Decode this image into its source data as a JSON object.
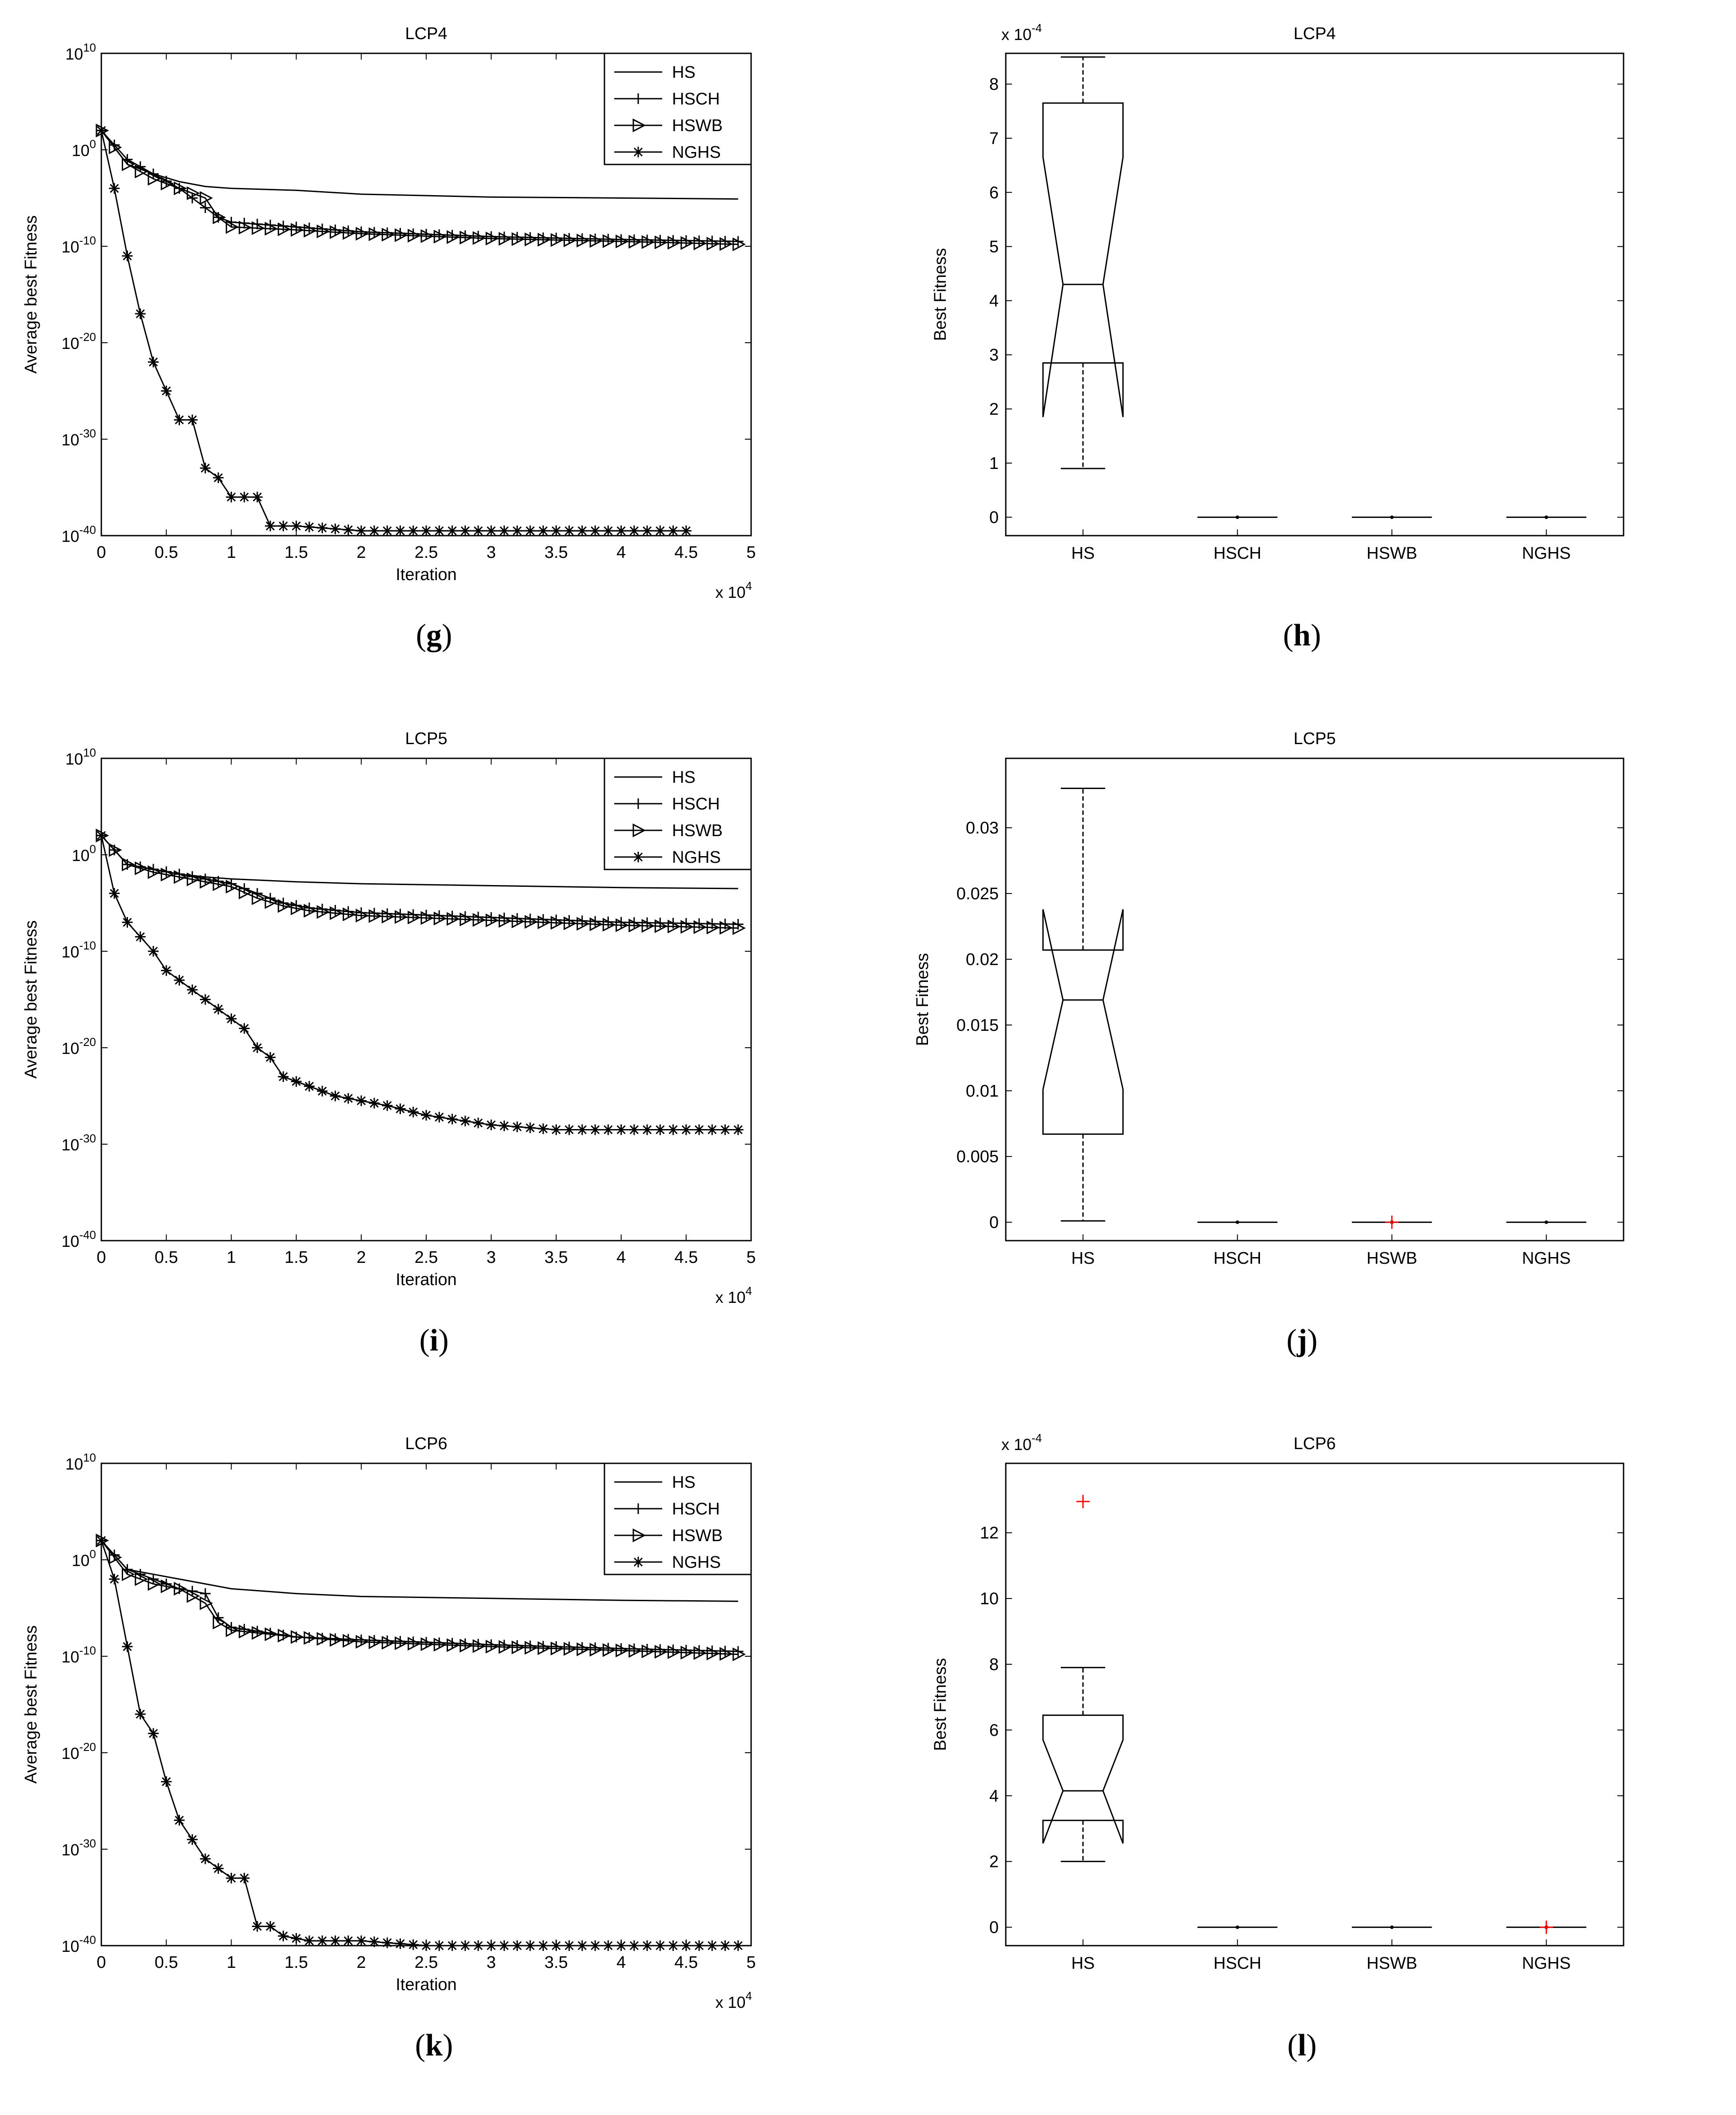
{
  "panels": [
    {
      "caption_letter": "g",
      "chart_index": 0
    },
    {
      "caption_letter": "h",
      "chart_index": 1
    },
    {
      "caption_letter": "i",
      "chart_index": 2
    },
    {
      "caption_letter": "j",
      "chart_index": 3
    },
    {
      "caption_letter": "k",
      "chart_index": 4
    },
    {
      "caption_letter": "l",
      "chart_index": 5
    }
  ],
  "chart_data": [
    {
      "type": "line",
      "title": "LCP4",
      "xlabel": "Iteration",
      "ylabel": "Average best Fitness",
      "x_multiplier_label": "x 10^4",
      "yscale": "log",
      "xlim": [
        0,
        5
      ],
      "ylim_exp": [
        -40,
        10
      ],
      "xticks": [
        "0",
        "0.5",
        "1",
        "1.5",
        "2",
        "2.5",
        "3",
        "3.5",
        "4",
        "4.5",
        "5"
      ],
      "yticks_exp": [
        10,
        0,
        -10,
        -20,
        -30,
        -40
      ],
      "legend": [
        "HS",
        "HSCH",
        "HSWB",
        "NGHS"
      ],
      "legend_position": "top-right",
      "series": [
        {
          "name": "HS",
          "marker": "none",
          "x": [
            0,
            0.2,
            0.4,
            0.6,
            0.8,
            1.0,
            1.5,
            2.0,
            3.0,
            4.0,
            4.9
          ],
          "y_exp": [
            2,
            -1.5,
            -2.5,
            -3.3,
            -3.8,
            -4.0,
            -4.2,
            -4.6,
            -4.9,
            -5.0,
            -5.1
          ]
        },
        {
          "name": "HSCH",
          "marker": "plus",
          "x": [
            0,
            0.2,
            0.4,
            0.6,
            0.8,
            0.9,
            1.0,
            1.5,
            2.0,
            3.0,
            4.0,
            4.9
          ],
          "y_exp": [
            2,
            -1.0,
            -2.5,
            -4.0,
            -6.0,
            -7.0,
            -7.5,
            -8.0,
            -8.5,
            -9.0,
            -9.3,
            -9.5
          ]
        },
        {
          "name": "HSWB",
          "marker": "triangle",
          "x": [
            0,
            0.2,
            0.4,
            0.6,
            0.8,
            0.9,
            1.0,
            1.5,
            2.0,
            3.0,
            4.0,
            4.9
          ],
          "y_exp": [
            2,
            -1.5,
            -3.0,
            -4.0,
            -5.0,
            -7.0,
            -8.0,
            -8.3,
            -8.7,
            -9.2,
            -9.5,
            -9.8
          ]
        },
        {
          "name": "NGHS",
          "marker": "star",
          "x": [
            0,
            0.1,
            0.2,
            0.3,
            0.4,
            0.5,
            0.6,
            0.7,
            0.8,
            0.9,
            1.0,
            1.1,
            1.2,
            1.3,
            1.5,
            2.0,
            3.0,
            4.0,
            4.5
          ],
          "y_exp": [
            2,
            -4,
            -11,
            -17,
            -22,
            -25,
            -28,
            -28,
            -33,
            -34,
            -36,
            -36,
            -36,
            -39,
            -39,
            -39.5,
            -39.5,
            -39.5,
            -39.5
          ]
        }
      ]
    },
    {
      "type": "box",
      "title": "LCP4",
      "ylabel": "Best Fitness",
      "exp_label": "x 10^-4",
      "ylim": [
        0,
        8.5
      ],
      "yticks": [
        "0",
        "1",
        "2",
        "3",
        "4",
        "5",
        "6",
        "7",
        "8"
      ],
      "categories": [
        "HS",
        "HSCH",
        "HSWB",
        "NGHS"
      ],
      "boxes": [
        {
          "whisker_low": 0.9,
          "q1": 2.85,
          "median": 4.3,
          "q3": 7.65,
          "whisker_high": 8.5,
          "notch_low": 1.85,
          "notch_high": 6.65,
          "outliers": []
        },
        {
          "whisker_low": 0,
          "q1": 0,
          "median": 0,
          "q3": 0,
          "whisker_high": 0,
          "notch_low": 0,
          "notch_high": 0,
          "outliers": []
        },
        {
          "whisker_low": 0,
          "q1": 0,
          "median": 0,
          "q3": 0,
          "whisker_high": 0,
          "notch_low": 0,
          "notch_high": 0,
          "outliers": []
        },
        {
          "whisker_low": 0,
          "q1": 0,
          "median": 0,
          "q3": 0,
          "whisker_high": 0,
          "notch_low": 0,
          "notch_high": 0,
          "outliers": []
        }
      ]
    },
    {
      "type": "line",
      "title": "LCP5",
      "xlabel": "Iteration",
      "ylabel": "Average best Fitness",
      "x_multiplier_label": "x 10^4",
      "yscale": "log",
      "xlim": [
        0,
        5
      ],
      "ylim_exp": [
        -40,
        10
      ],
      "xticks": [
        "0",
        "0.5",
        "1",
        "1.5",
        "2",
        "2.5",
        "3",
        "3.5",
        "4",
        "4.5",
        "5"
      ],
      "yticks_exp": [
        10,
        0,
        -10,
        -20,
        -30,
        -40
      ],
      "legend": [
        "HS",
        "HSCH",
        "HSWB",
        "NGHS"
      ],
      "legend_position": "top-right",
      "series": [
        {
          "name": "HS",
          "marker": "none",
          "x": [
            0,
            0.2,
            0.4,
            0.6,
            0.8,
            1.0,
            1.5,
            2.0,
            3.0,
            4.0,
            4.9
          ],
          "y_exp": [
            2,
            -1.0,
            -1.5,
            -2.0,
            -2.3,
            -2.5,
            -2.8,
            -3.0,
            -3.2,
            -3.4,
            -3.5
          ]
        },
        {
          "name": "HSCH",
          "marker": "plus",
          "x": [
            0,
            0.2,
            0.4,
            0.6,
            0.8,
            1.0,
            1.2,
            1.4,
            1.6,
            2.0,
            3.0,
            4.0,
            4.9
          ],
          "y_exp": [
            2,
            -1.0,
            -1.5,
            -2.0,
            -2.5,
            -3.0,
            -4.0,
            -5.0,
            -5.5,
            -6.0,
            -6.5,
            -7.0,
            -7.2
          ]
        },
        {
          "name": "HSWB",
          "marker": "triangle",
          "x": [
            0,
            0.2,
            0.4,
            0.6,
            0.8,
            1.0,
            1.2,
            1.4,
            1.6,
            2.0,
            3.0,
            4.0,
            4.9
          ],
          "y_exp": [
            2,
            -1.0,
            -1.8,
            -2.3,
            -2.8,
            -3.3,
            -4.5,
            -5.3,
            -5.8,
            -6.3,
            -6.8,
            -7.3,
            -7.6
          ]
        },
        {
          "name": "NGHS",
          "marker": "star",
          "x": [
            0,
            0.1,
            0.2,
            0.4,
            0.5,
            0.7,
            0.8,
            1.0,
            1.1,
            1.2,
            1.3,
            1.4,
            1.6,
            1.8,
            2.0,
            2.2,
            2.5,
            3.0,
            3.5,
            4.0,
            4.9
          ],
          "y_exp": [
            2,
            -4,
            -7,
            -10,
            -12,
            -14,
            -15,
            -17,
            -18,
            -20,
            -21,
            -23,
            -24,
            -25,
            -25.5,
            -26,
            -27,
            -28,
            -28.5,
            -28.5,
            -28.5
          ]
        }
      ]
    },
    {
      "type": "box",
      "title": "LCP5",
      "ylabel": "Best Fitness",
      "exp_label": "",
      "ylim": [
        0,
        0.035
      ],
      "yticks": [
        "0",
        "0.005",
        "0.01",
        "0.015",
        "0.02",
        "0.025",
        "0.03"
      ],
      "categories": [
        "HS",
        "HSCH",
        "HSWB",
        "NGHS"
      ],
      "boxes": [
        {
          "whisker_low": 0.0001,
          "q1": 0.0067,
          "median": 0.0169,
          "q3": 0.0207,
          "whisker_high": 0.033,
          "notch_low": 0.0101,
          "notch_high": 0.0238,
          "outliers": []
        },
        {
          "whisker_low": 0,
          "q1": 0,
          "median": 0,
          "q3": 0,
          "whisker_high": 0,
          "notch_low": 0,
          "notch_high": 0,
          "outliers": []
        },
        {
          "whisker_low": 0,
          "q1": 0,
          "median": 0,
          "q3": 0,
          "whisker_high": 0,
          "notch_low": 0,
          "notch_high": 0,
          "outliers": [
            0
          ]
        },
        {
          "whisker_low": 0,
          "q1": 0,
          "median": 0,
          "q3": 0,
          "whisker_high": 0,
          "notch_low": 0,
          "notch_high": 0,
          "outliers": []
        }
      ]
    },
    {
      "type": "line",
      "title": "LCP6",
      "xlabel": "Iteration",
      "ylabel": "Average best Fitness",
      "x_multiplier_label": "x 10^4",
      "yscale": "log",
      "xlim": [
        0,
        5
      ],
      "ylim_exp": [
        -40,
        10
      ],
      "xticks": [
        "0",
        "0.5",
        "1",
        "1.5",
        "2",
        "2.5",
        "3",
        "3.5",
        "4",
        "4.5",
        "5"
      ],
      "yticks_exp": [
        10,
        0,
        -10,
        -20,
        -30,
        -40
      ],
      "legend": [
        "HS",
        "HSCH",
        "HSWB",
        "NGHS"
      ],
      "legend_position": "top-right",
      "series": [
        {
          "name": "HS",
          "marker": "none",
          "x": [
            0,
            0.2,
            0.4,
            0.6,
            0.8,
            1.0,
            1.5,
            2.0,
            3.0,
            4.0,
            4.9
          ],
          "y_exp": [
            2,
            -1.0,
            -1.5,
            -2.0,
            -2.5,
            -3.0,
            -3.5,
            -3.8,
            -4.0,
            -4.2,
            -4.3
          ]
        },
        {
          "name": "HSCH",
          "marker": "plus",
          "x": [
            0,
            0.2,
            0.4,
            0.6,
            0.8,
            0.9,
            1.0,
            1.5,
            2.0,
            3.0,
            4.0,
            4.9
          ],
          "y_exp": [
            2,
            -1.0,
            -2.0,
            -3.0,
            -3.5,
            -6.0,
            -7.0,
            -8.0,
            -8.3,
            -8.8,
            -9.2,
            -9.5
          ]
        },
        {
          "name": "HSWB",
          "marker": "triangle",
          "x": [
            0,
            0.2,
            0.4,
            0.6,
            0.8,
            0.9,
            1.0,
            1.5,
            2.0,
            3.0,
            4.0,
            4.9
          ],
          "y_exp": [
            2,
            -1.5,
            -2.5,
            -3.0,
            -4.5,
            -6.5,
            -7.3,
            -8.0,
            -8.5,
            -9.0,
            -9.4,
            -9.8
          ]
        },
        {
          "name": "NGHS",
          "marker": "star",
          "x": [
            0,
            0.1,
            0.2,
            0.3,
            0.4,
            0.5,
            0.6,
            0.7,
            0.8,
            0.9,
            1.0,
            1.1,
            1.2,
            1.3,
            1.4,
            1.6,
            2.0,
            2.5,
            3.0,
            4.0,
            4.9
          ],
          "y_exp": [
            2,
            -2,
            -9,
            -16,
            -18,
            -23,
            -27,
            -29,
            -31,
            -32,
            -33,
            -33,
            -38,
            -38,
            -39,
            -39.5,
            -39.5,
            -40,
            -40,
            -40,
            -40
          ]
        }
      ]
    },
    {
      "type": "box",
      "title": "LCP6",
      "ylabel": "Best Fitness",
      "exp_label": "x 10^-4",
      "ylim": [
        0,
        14
      ],
      "yticks": [
        "0",
        "2",
        "4",
        "6",
        "8",
        "10",
        "12"
      ],
      "categories": [
        "HS",
        "HSCH",
        "HSWB",
        "NGHS"
      ],
      "boxes": [
        {
          "whisker_low": 2.0,
          "q1": 3.25,
          "median": 4.15,
          "q3": 6.45,
          "whisker_high": 7.9,
          "notch_low": 2.55,
          "notch_high": 5.7,
          "outliers": [
            12.95
          ]
        },
        {
          "whisker_low": 0,
          "q1": 0,
          "median": 0,
          "q3": 0,
          "whisker_high": 0,
          "notch_low": 0,
          "notch_high": 0,
          "outliers": []
        },
        {
          "whisker_low": 0,
          "q1": 0,
          "median": 0,
          "q3": 0,
          "whisker_high": 0,
          "notch_low": 0,
          "notch_high": 0,
          "outliers": []
        },
        {
          "whisker_low": 0,
          "q1": 0,
          "median": 0,
          "q3": 0,
          "whisker_high": 0,
          "notch_low": 0,
          "notch_high": 0,
          "outliers": [
            0
          ]
        }
      ]
    }
  ]
}
